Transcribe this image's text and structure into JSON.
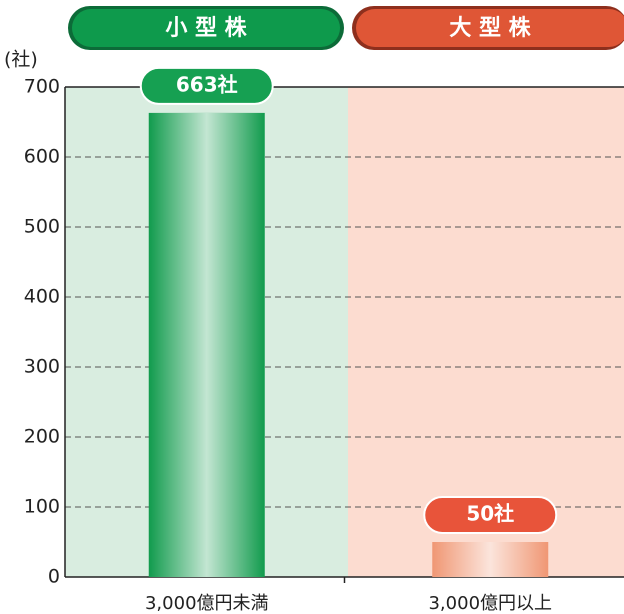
{
  "chart_data": {
    "type": "bar",
    "groups": [
      "小 型 株",
      "大 型 株"
    ],
    "y_unit": "(社)",
    "categories": [
      "3,000億円未満",
      "3,000億円以上"
    ],
    "values": [
      663,
      50
    ],
    "value_labels": [
      "663社",
      "50社"
    ],
    "colors": [
      "#119b4d",
      "#f09774"
    ],
    "ylim": [
      0,
      700
    ],
    "yticks": [
      0,
      100,
      200,
      300,
      400,
      500,
      600,
      700
    ],
    "grid": true
  }
}
